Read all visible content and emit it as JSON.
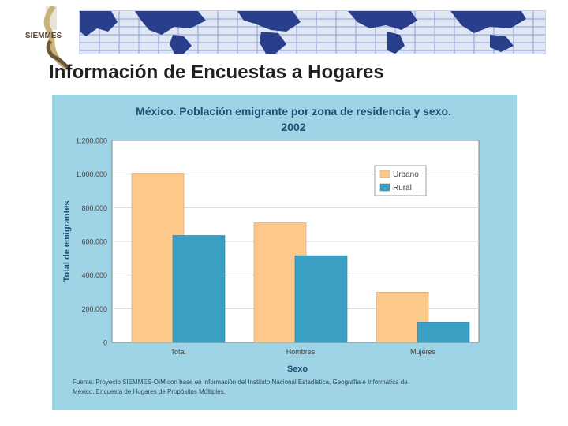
{
  "header": {
    "logo_text": "SIEMMES",
    "title": "Información de Encuestas a Hogares"
  },
  "colors": {
    "urbano": "#fcc98a",
    "rural": "#3b9ec3",
    "panel": "#9fd3e6",
    "plot_bg": "#ffffff",
    "map_land": "#2a3f8c"
  },
  "chart_data": {
    "type": "bar",
    "title_line1": "México. Población emigrante por zona de residencia y sexo.",
    "title_line2": "2002",
    "xlabel": "Sexo",
    "ylabel": "Total de emigrantes",
    "categories": [
      "Total",
      "Hombres",
      "Mujeres"
    ],
    "series": [
      {
        "name": "Urbano",
        "values": [
          1005000,
          710000,
          298000
        ]
      },
      {
        "name": "Rural",
        "values": [
          635000,
          515000,
          120000
        ]
      }
    ],
    "ylim": [
      0,
      1200000
    ],
    "yticks": [
      0,
      200000,
      400000,
      600000,
      800000,
      1000000,
      1200000
    ],
    "ytick_labels": [
      "0",
      "200.000",
      "400.000",
      "600.000",
      "800.000",
      "1.000.000",
      "1.200.000"
    ],
    "grid": true,
    "legend_position": "top-right",
    "source_line1": "Fuente: Proyecto SIEMMES-OIM con base en información del Instituto Nacional Estadística, Geografía e Informática de",
    "source_line2": "México. Encuesta de Hogares de Propósitos Múltiples."
  }
}
